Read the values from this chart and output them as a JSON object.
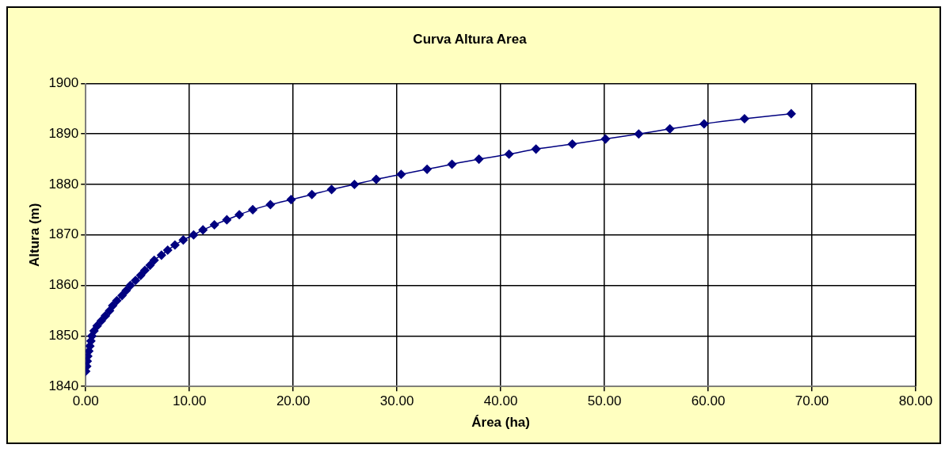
{
  "chart_data": {
    "type": "line",
    "title": "Curva Altura Area",
    "xlabel": "Área (ha)",
    "ylabel": "Altura (m)",
    "xlim": [
      0,
      80
    ],
    "xticks": [
      {
        "value": 0,
        "label": "0.00"
      },
      {
        "value": 10,
        "label": "10.00"
      },
      {
        "value": 20,
        "label": "20.00"
      },
      {
        "value": 30,
        "label": "30.00"
      },
      {
        "value": 40,
        "label": "40.00"
      },
      {
        "value": 50,
        "label": "50.00"
      },
      {
        "value": 60,
        "label": "60.00"
      },
      {
        "value": 70,
        "label": "70.00"
      },
      {
        "value": 80,
        "label": "80.00"
      }
    ],
    "ylim": [
      1840,
      1900
    ],
    "yticks": [
      1840,
      1850,
      1860,
      1870,
      1880,
      1890,
      1900
    ],
    "grid": true,
    "marker": "diamond",
    "line_style": "solid",
    "series": [
      {
        "color": "#000080",
        "x": [
          0.0,
          0.1,
          0.15,
          0.2,
          0.3,
          0.4,
          0.5,
          0.6,
          0.8,
          1.1,
          1.5,
          1.9,
          2.3,
          2.6,
          3.0,
          3.5,
          3.9,
          4.3,
          4.8,
          5.3,
          5.7,
          6.2,
          6.6,
          7.3,
          7.9,
          8.6,
          9.4,
          10.4,
          11.3,
          12.4,
          13.6,
          14.8,
          16.1,
          17.8,
          19.8,
          21.8,
          23.7,
          25.9,
          28.0,
          30.4,
          32.9,
          35.3,
          37.9,
          40.8,
          43.4,
          46.9,
          50.1,
          53.3,
          56.3,
          59.6,
          63.5,
          68.0
        ],
        "values": [
          1843,
          1844,
          1845,
          1846,
          1847,
          1848,
          1849,
          1850,
          1851,
          1852,
          1853,
          1854,
          1855,
          1856,
          1857,
          1858,
          1859,
          1860,
          1861,
          1862,
          1863,
          1864,
          1865,
          1866,
          1867,
          1868,
          1869,
          1870,
          1871,
          1872,
          1873,
          1874,
          1875,
          1876,
          1877,
          1878,
          1879,
          1880,
          1881,
          1882,
          1883,
          1884,
          1885,
          1886,
          1887,
          1888,
          1889,
          1890,
          1891,
          1892,
          1893,
          1894
        ]
      }
    ]
  }
}
